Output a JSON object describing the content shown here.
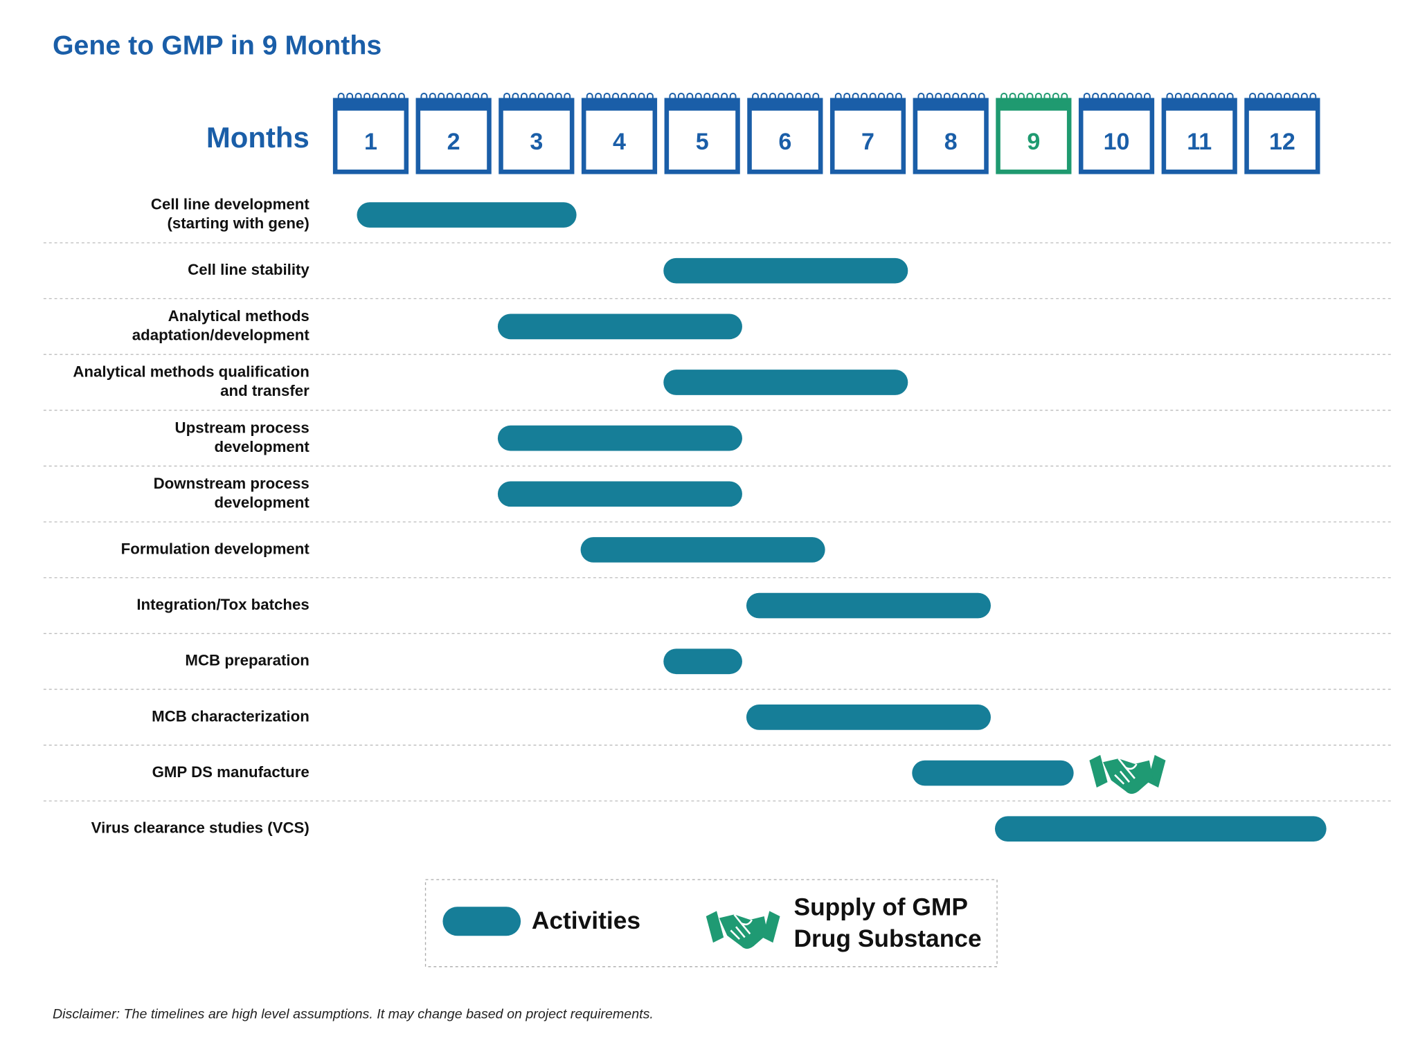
{
  "chart_data": {
    "type": "gantt",
    "title": "Gene to GMP in 9 Months",
    "xlabel": "Months",
    "xlim": [
      0,
      12
    ],
    "xticks": [
      1,
      2,
      3,
      4,
      5,
      6,
      7,
      8,
      9,
      10,
      11,
      12
    ],
    "highlight_tick": 9,
    "calendar_color": "#1a5ea8",
    "highlight_color": "#1f9a70",
    "tasks": [
      {
        "label": [
          "Cell line development",
          "(starting with gene)"
        ],
        "start": 0.3,
        "end": 2.95
      },
      {
        "label": [
          "Cell line stability"
        ],
        "start": 4,
        "end": 6.95
      },
      {
        "label": [
          "Analytical methods",
          "adaptation/development"
        ],
        "start": 2,
        "end": 4.95
      },
      {
        "label": [
          "Analytical methods qualification",
          "and transfer"
        ],
        "start": 4,
        "end": 6.95
      },
      {
        "label": [
          "Upstream process",
          "development"
        ],
        "start": 2,
        "end": 4.95
      },
      {
        "label": [
          "Downstream process",
          "development"
        ],
        "start": 2,
        "end": 4.95
      },
      {
        "label": [
          "Formulation development"
        ],
        "start": 3,
        "end": 5.95
      },
      {
        "label": [
          "Integration/Tox batches"
        ],
        "start": 5,
        "end": 7.95
      },
      {
        "label": [
          "MCB preparation"
        ],
        "start": 4,
        "end": 4.95
      },
      {
        "label": [
          "MCB characterization"
        ],
        "start": 5,
        "end": 7.95
      },
      {
        "label": [
          "GMP DS manufacture"
        ],
        "start": 7,
        "end": 8.95,
        "milestone": 9.6
      },
      {
        "label": [
          "Virus clearance studies (VCS)"
        ],
        "start": 8,
        "end": 12
      }
    ],
    "legend": [
      {
        "name": [
          "Activities"
        ],
        "color": "#167e98"
      },
      {
        "name": [
          "Supply of GMP",
          "Drug Substance"
        ],
        "color": "#1f9a73"
      }
    ],
    "footnote": "Disclaimer: The timelines are high level assumptions. It may change based on project requirements."
  }
}
